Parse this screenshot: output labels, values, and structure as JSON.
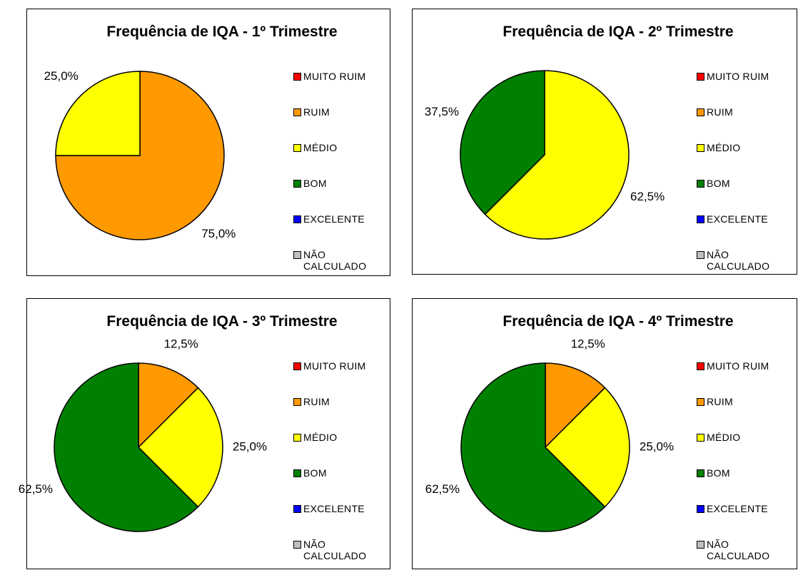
{
  "chart_data": [
    {
      "type": "pie",
      "title": "Frequência de IQA - 1º Trimestre",
      "categories": [
        "MUITO RUIM",
        "RUIM",
        "MÉDIO",
        "BOM",
        "EXCELENTE",
        "NÃO CALCULADO"
      ],
      "colors": [
        "#ff0000",
        "#ff9900",
        "#ffff00",
        "#008000",
        "#0000ff",
        "#c0c0c0"
      ],
      "values": [
        0,
        75,
        25,
        0,
        0,
        0
      ],
      "value_labels": [
        null,
        "75,0%",
        "25,0%",
        null,
        null,
        null
      ]
    },
    {
      "type": "pie",
      "title": "Frequência de IQA - 2º Trimestre",
      "categories": [
        "MUITO RUIM",
        "RUIM",
        "MÉDIO",
        "BOM",
        "EXCELENTE",
        "NÃO CALCULADO"
      ],
      "colors": [
        "#ff0000",
        "#ff9900",
        "#ffff00",
        "#008000",
        "#0000ff",
        "#c0c0c0"
      ],
      "values": [
        0,
        0,
        62.5,
        37.5,
        0,
        0
      ],
      "value_labels": [
        null,
        null,
        "62,5%",
        "37,5%",
        null,
        null
      ]
    },
    {
      "type": "pie",
      "title": "Frequência de IQA - 3º Trimestre",
      "categories": [
        "MUITO RUIM",
        "RUIM",
        "MÉDIO",
        "BOM",
        "EXCELENTE",
        "NÃO CALCULADO"
      ],
      "colors": [
        "#ff0000",
        "#ff9900",
        "#ffff00",
        "#008000",
        "#0000ff",
        "#c0c0c0"
      ],
      "values": [
        0,
        12.5,
        25,
        62.5,
        0,
        0
      ],
      "value_labels": [
        null,
        "12,5%",
        "25,0%",
        "62,5%",
        null,
        null
      ]
    },
    {
      "type": "pie",
      "title": "Frequência de IQA - 4º Trimestre",
      "categories": [
        "MUITO RUIM",
        "RUIM",
        "MÉDIO",
        "BOM",
        "EXCELENTE",
        "NÃO CALCULADO"
      ],
      "colors": [
        "#ff0000",
        "#ff9900",
        "#ffff00",
        "#008000",
        "#0000ff",
        "#c0c0c0"
      ],
      "values": [
        0,
        12.5,
        25,
        62.5,
        0,
        0
      ],
      "value_labels": [
        null,
        "12,5%",
        "25,0%",
        "62,5%",
        null,
        null
      ]
    }
  ]
}
